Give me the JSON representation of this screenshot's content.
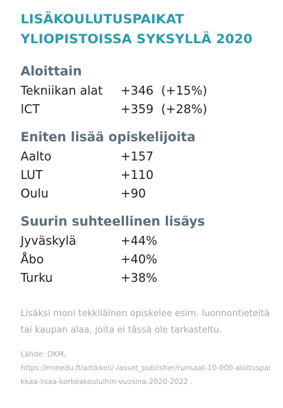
{
  "colors": {
    "accent": "#2a9bb0",
    "heading": "#5b6e7a",
    "text": "#222222",
    "muted": "#a8a8a8"
  },
  "title": {
    "line1": "LISÄKOULUTUSPAIKAT",
    "line2": "YLIOPISTOISSA SYKSYLLÄ 2020"
  },
  "sections": {
    "by_field": {
      "heading": "Aloittain",
      "rows": [
        {
          "name": "Tekniikan alat",
          "value": "+346",
          "pct": "(+15%)"
        },
        {
          "name": "ICT",
          "value": "+359",
          "pct": "(+28%)"
        }
      ]
    },
    "most_students": {
      "heading": "Eniten lisää opiskelijoita",
      "rows": [
        {
          "name": "Aalto",
          "value": "+157"
        },
        {
          "name": "LUT",
          "value": "+110"
        },
        {
          "name": "Oulu",
          "value": "+90"
        }
      ]
    },
    "relative_increase": {
      "heading": "Suurin suhteellinen lisäys",
      "rows": [
        {
          "name": "Jyväskylä",
          "value": "+44%"
        },
        {
          "name": "Åbo",
          "value": "+40%"
        },
        {
          "name": "Turku",
          "value": "+38%"
        }
      ]
    }
  },
  "note": "Lisäksi moni tekkiläinen opiskelee esim. luonnontieteitä tai kaupan alaa, joita ei tässä ole tarkasteltu.",
  "source": {
    "label": "Lähde: OKM,",
    "url": "https://minedu.fi/artikkeli/-/asset_publisher/runsaat-10-000-aloituspaikkaa-lisaa-korkeakouluihin-vuosina-2020-2022 ."
  }
}
